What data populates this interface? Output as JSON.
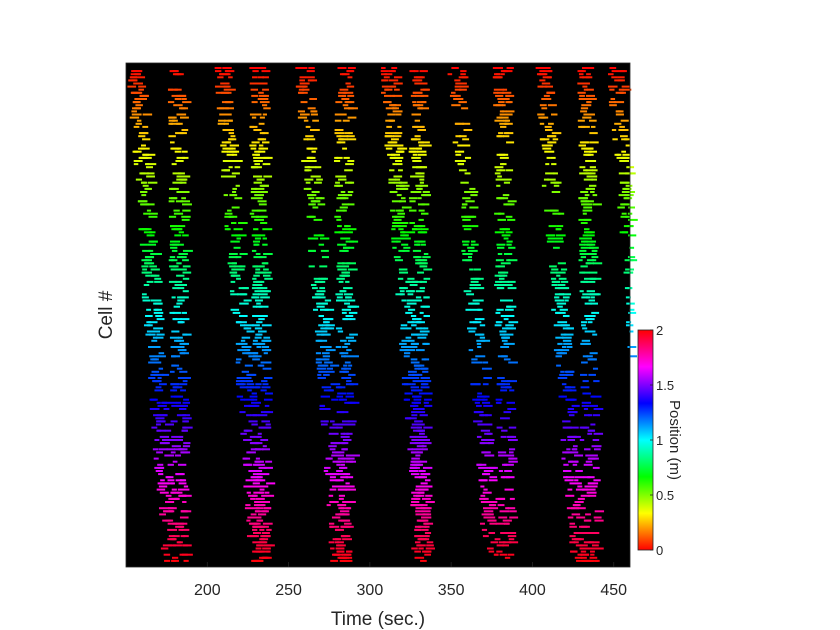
{
  "chart_data": {
    "type": "raster",
    "xlabel": "Time (sec.)",
    "ylabel": "Cell #",
    "xlim": [
      150,
      460
    ],
    "x_ticks": [
      "200",
      "250",
      "300",
      "350",
      "400",
      "450"
    ],
    "y_ticks_shown": false,
    "grid": false,
    "background_color": "#000000",
    "marker": "short horizontal dash per spike",
    "description_of_data": {
      "lap_pass_times_sec": [
        154,
        180,
        208,
        230,
        258,
        282,
        310,
        328,
        352,
        380,
        405,
        432,
        450
      ],
      "colormap": "hsv",
      "color_by": "place-field position of each cell"
    },
    "colorbar": {
      "label": "Position (m)",
      "lim": [
        0,
        2
      ],
      "ticks": [
        "0",
        "0.5",
        "1",
        "1.5",
        "2"
      ],
      "colormap": "hsv",
      "placement": "right"
    }
  }
}
